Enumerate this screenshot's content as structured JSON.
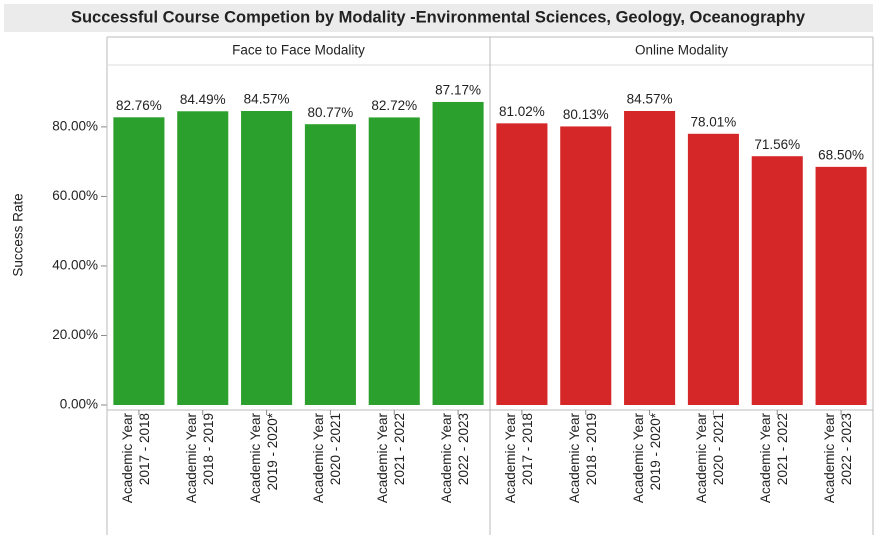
{
  "chart_data": {
    "type": "bar",
    "title": "Successful Course Competion by Modality -Environmental Sciences, Geology, Oceanography",
    "y_label": "Success Rate",
    "ylim": [
      0,
      97.8
    ],
    "yticks": [
      {
        "value": 0,
        "label": "0.00%"
      },
      {
        "value": 20,
        "label": "20.00%"
      },
      {
        "value": 40,
        "label": "40.00%"
      },
      {
        "value": 60,
        "label": "60.00%"
      },
      {
        "value": 80,
        "label": "80.00%"
      }
    ],
    "panels": [
      {
        "name": "Face to Face Modality",
        "color": "#2ca02c",
        "categories": [
          "Academic Year\n2017 - 2018",
          "Academic Year\n2018 - 2019",
          "Academic Year\n2019 - 2020*",
          "Academic Year\n2020 - 2021",
          "Academic Year\n2021 - 2022",
          "Academic Year\n2022 - 2023"
        ],
        "values": [
          82.76,
          84.49,
          84.57,
          80.77,
          82.72,
          87.17
        ],
        "value_labels": [
          "82.76%",
          "84.49%",
          "84.57%",
          "80.77%",
          "82.72%",
          "87.17%"
        ]
      },
      {
        "name": "Online Modality",
        "color": "#d62728",
        "categories": [
          "Academic Year\n2017 - 2018",
          "Academic Year\n2018 - 2019",
          "Academic Year\n2019 - 2020*",
          "Academic Year\n2020 - 2021",
          "Academic Year\n2021 - 2022",
          "Academic Year\n2022 - 2023"
        ],
        "values": [
          81.02,
          80.13,
          84.57,
          78.01,
          71.56,
          68.5
        ],
        "value_labels": [
          "81.02%",
          "80.13%",
          "84.57%",
          "78.01%",
          "71.56%",
          "68.50%"
        ]
      }
    ]
  }
}
